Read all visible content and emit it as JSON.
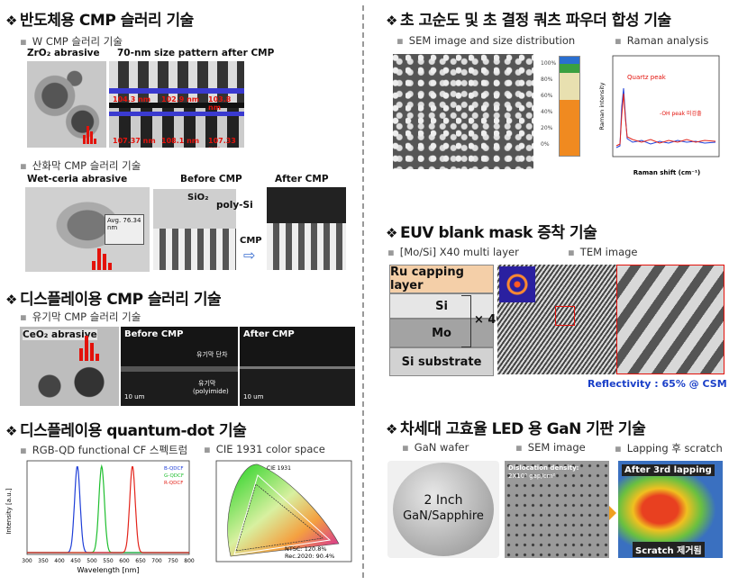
{
  "left": {
    "s1": {
      "title": "반도체용 CMP 슬러리 기술",
      "sub1": "W CMP 슬러리 기술",
      "zro2": "ZrO₂ abrasive",
      "pattern": "70-nm size pattern after CMP",
      "meas1": [
        "104.3 nm",
        "102.9 nm",
        "103.8 nm"
      ],
      "meas2": [
        "107.37 nm",
        "108.1 nm",
        "107.33 nm"
      ],
      "sub2": "산화막 CMP 슬러리 기술",
      "wetceria": "Wet-ceria abrasive",
      "avg": "Avg. 76.34 nm",
      "before": "Before CMP",
      "after": "After CMP",
      "sio2": "SiO₂",
      "polysi": "poly-Si",
      "cmp": "CMP"
    },
    "s2": {
      "title": "디스플레이용 CMP 슬러리 기술",
      "sub1": "유기막 CMP 슬러리 기술",
      "ceo2": "CeO₂ abrasive",
      "before": "Before CMP",
      "after": "After CMP",
      "step": "유기막 단차",
      "organic": "유기막",
      "polyimide": "(polyimide)",
      "scale1": "10 um",
      "scale2": "10 um"
    },
    "s3": {
      "title": "디스플레이용 quantum-dot 기술",
      "sub1": "RGB-QD functional CF 스펙트럼",
      "sub2": "CIE 1931 color space",
      "ylabel": "Intensity [a.u.]",
      "xlabel": "Wavelength [nm]",
      "xticks": [
        "300",
        "350",
        "400",
        "450",
        "500",
        "550",
        "600",
        "650",
        "700",
        "750",
        "800"
      ],
      "legend": [
        "B-QDCF",
        "G-QDCF",
        "R-QDCF"
      ],
      "cie_title": "CIE 1931",
      "ntsc": "NTSC: 120.8%",
      "rec": "Rec.2020: 90.4%"
    }
  },
  "right": {
    "s1": {
      "title": "초 고순도 및 초 결정 쿼츠 파우더 합성 기술",
      "sub1": "SEM image and size distribution",
      "sub2": "Raman analysis",
      "quartz": "Quartz peak",
      "oh": "-OH peak 미검출",
      "xlabel": "Raman shift (cm⁻¹)",
      "ylabel": "Raman intensity"
    },
    "s2": {
      "title": "EUV blank mask 증착 기술",
      "sub1": "[Mo/Si] X40 multi layer",
      "sub2": "TEM image",
      "layers": [
        "Ru capping layer",
        "Si",
        "Mo",
        "Si substrate"
      ],
      "times": "× 40",
      "reflect": "Reflectivity : 65% @ CSM"
    },
    "s3": {
      "title": "차세대 고효율  LED 용 GaN 기판 기술",
      "sub1": "GaN wafer",
      "sub2": "SEM image",
      "sub3": "Lapping 후 scratch",
      "wafer1": "2 Inch",
      "wafer2": "GaN/Sapphire",
      "disloc1": "Dislocation density:",
      "disloc2": "2X10⁸ gap/cm²",
      "after3": "After 3rd lapping",
      "scratch": "Scratch 제거됨"
    }
  },
  "chart_data": {
    "type": "line",
    "xlabel": "Wavelength [nm]",
    "ylabel": "Intensity [a.u.]",
    "xlim": [
      300,
      800
    ],
    "series": [
      {
        "name": "B-QDCF",
        "peak": 455,
        "color": "#1f3fd8"
      },
      {
        "name": "G-QDCF",
        "peak": 530,
        "color": "#1fbf2f"
      },
      {
        "name": "R-QDCF",
        "peak": 625,
        "color": "#e3241b"
      }
    ]
  }
}
